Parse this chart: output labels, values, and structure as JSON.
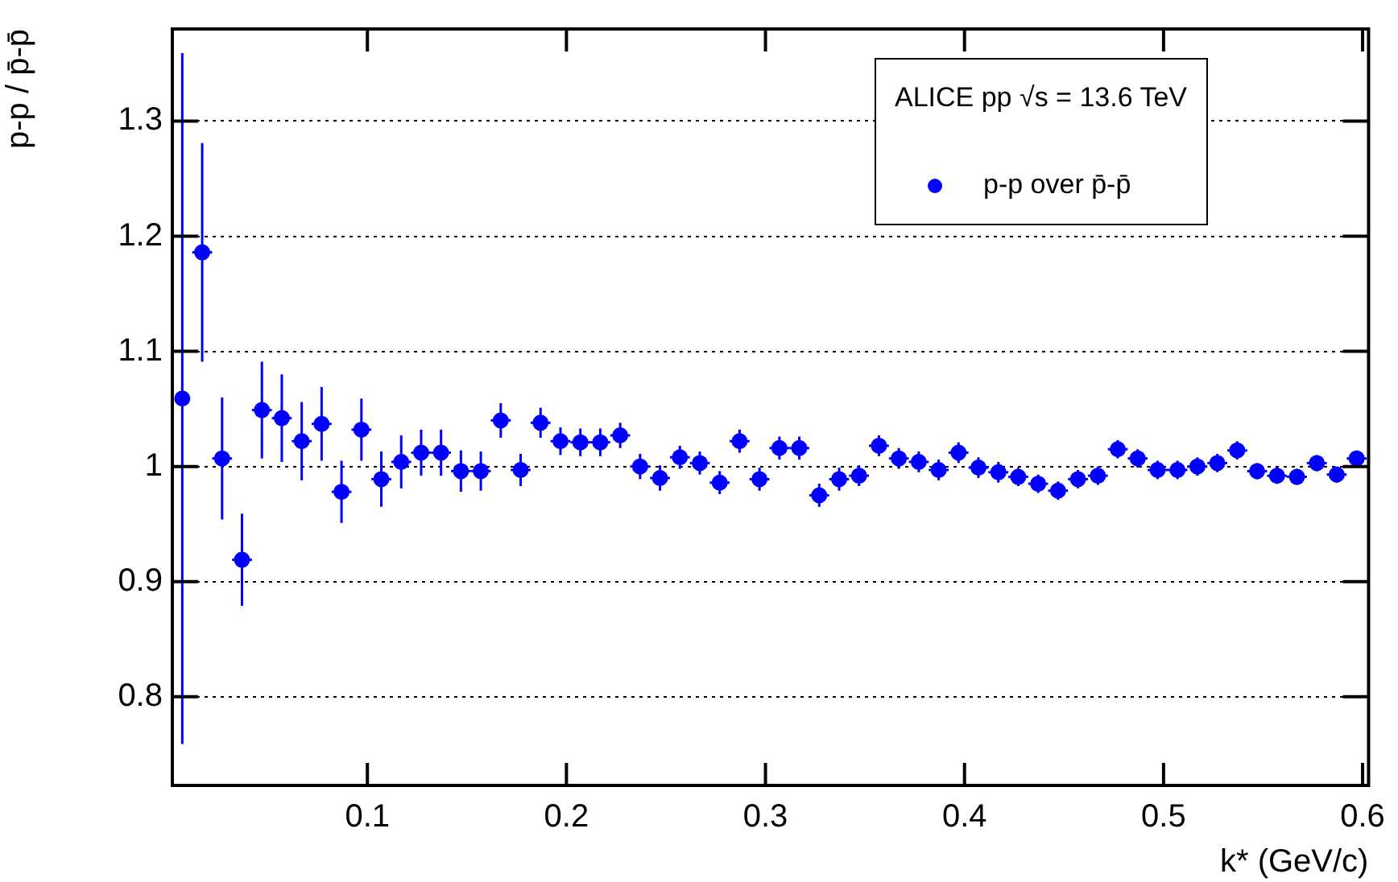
{
  "chart_data": {
    "type": "scatter",
    "xlabel": "k* (GeV/c)",
    "ylabel": "p-p / p̄-p̄",
    "legend_title": "ALICE pp  √s = 13.6 TeV",
    "legend": "top right",
    "grid": "y",
    "marker": "circle",
    "xlim": [
      0.002,
      0.603
    ],
    "xticks": [
      0.1,
      0.2,
      0.3,
      0.4,
      0.5,
      0.6
    ],
    "ylim": [
      0.723,
      1.38
    ],
    "yticks": [
      0.8,
      0.9,
      1,
      1.1,
      1.2,
      1.3
    ],
    "series": [
      {
        "name": "p-p over p̄-p̄",
        "color": "#0000ff",
        "x": [
          0.007,
          0.017,
          0.027,
          0.037,
          0.047,
          0.057,
          0.067,
          0.077,
          0.087,
          0.097,
          0.107,
          0.117,
          0.127,
          0.137,
          0.147,
          0.157,
          0.167,
          0.177,
          0.187,
          0.197,
          0.207,
          0.217,
          0.227,
          0.237,
          0.247,
          0.257,
          0.267,
          0.277,
          0.287,
          0.297,
          0.307,
          0.317,
          0.327,
          0.337,
          0.347,
          0.357,
          0.367,
          0.377,
          0.387,
          0.397,
          0.407,
          0.417,
          0.427,
          0.437,
          0.447,
          0.457,
          0.467,
          0.477,
          0.487,
          0.497,
          0.507,
          0.517,
          0.527,
          0.537,
          0.547,
          0.557,
          0.567,
          0.577,
          0.587,
          0.597
        ],
        "values": [
          1.059,
          1.186,
          1.007,
          0.919,
          1.049,
          1.042,
          1.022,
          1.037,
          0.978,
          1.032,
          0.989,
          1.004,
          1.012,
          1.012,
          0.996,
          0.996,
          1.04,
          0.997,
          1.038,
          1.022,
          1.021,
          1.021,
          1.027,
          1.0,
          0.99,
          1.008,
          1.003,
          0.986,
          1.022,
          0.989,
          1.016,
          1.016,
          0.975,
          0.989,
          0.992,
          1.018,
          1.007,
          1.004,
          0.997,
          1.012,
          0.999,
          0.995,
          0.991,
          0.985,
          0.979,
          0.989,
          0.992,
          1.015,
          1.007,
          0.997,
          0.997,
          1.0,
          1.003,
          1.014,
          0.996,
          0.992,
          0.991,
          1.003,
          0.993,
          1.007
        ],
        "errors": [
          0.3,
          0.095,
          0.053,
          0.04,
          0.042,
          0.038,
          0.034,
          0.032,
          0.027,
          0.027,
          0.024,
          0.023,
          0.02,
          0.02,
          0.018,
          0.017,
          0.015,
          0.014,
          0.013,
          0.012,
          0.012,
          0.012,
          0.011,
          0.011,
          0.011,
          0.01,
          0.01,
          0.01,
          0.01,
          0.01,
          0.01,
          0.01,
          0.01,
          0.01,
          0.009,
          0.009,
          0.009,
          0.009,
          0.009,
          0.009,
          0.009,
          0.009,
          0.008,
          0.008,
          0.008,
          0.008,
          0.008,
          0.008,
          0.008,
          0.008,
          0.008,
          0.008,
          0.008,
          0.008,
          0.007,
          0.007,
          0.007,
          0.007,
          0.007,
          0.007
        ],
        "xerrors": [
          null,
          0.005,
          0.005,
          0.005,
          0.005,
          0.005,
          0.005,
          0.005,
          0.005,
          0.005,
          0.005,
          0.005,
          0.005,
          0.005,
          0.005,
          0.005,
          0.005,
          0.005,
          0.005,
          0.005,
          0.005,
          0.005,
          0.005,
          0.005,
          0.005,
          0.005,
          0.005,
          0.005,
          0.005,
          0.005,
          0.005,
          0.005,
          0.005,
          0.005,
          0.005,
          0.005,
          0.005,
          0.005,
          0.005,
          0.005,
          0.005,
          0.005,
          0.005,
          0.005,
          0.005,
          0.005,
          0.005,
          0.005,
          0.005,
          0.005,
          0.005,
          0.005,
          0.005,
          0.005,
          0.005,
          0.005,
          0.005,
          0.005,
          0.005,
          0.005
        ]
      }
    ]
  }
}
